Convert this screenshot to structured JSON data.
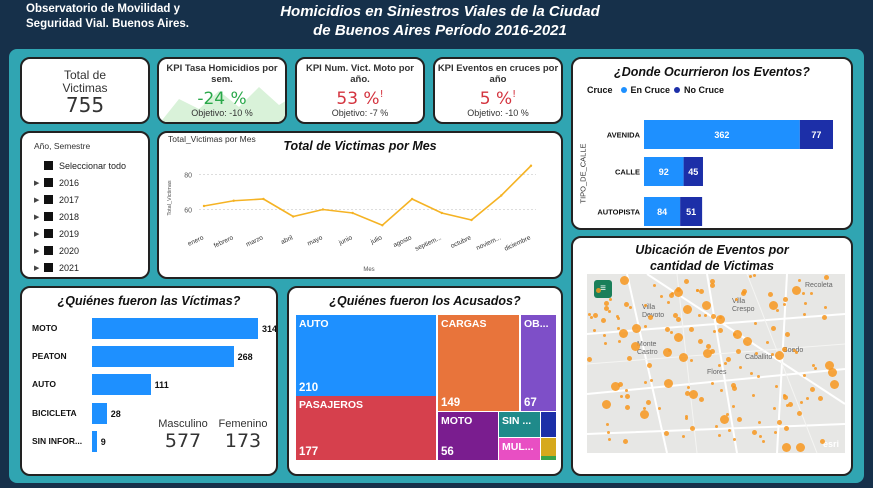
{
  "header": {
    "org": "Observatorio de Movilidad y Seguridad Vial. Buenos Aires.",
    "title_line1": "Homicidios en Siniestros Viales de la Ciudad",
    "title_line2": "de Buenos Aires Período 2016-2021"
  },
  "kpi_total": {
    "label": "Total de Victimas",
    "value": "755"
  },
  "kpi_homicidios": {
    "label": "KPI Tasa Homicidios por sem.",
    "value": "-24 %",
    "objective": "Objetivo: -10 %"
  },
  "kpi_moto": {
    "label": "KPI Num. Vict. Moto por año.",
    "value": "53 %",
    "objective": "Objetivo: -7 %"
  },
  "kpi_cruces": {
    "label": "KPI Eventos en cruces por año",
    "value": "5 %",
    "objective": "Objetivo: -10 %"
  },
  "slicer": {
    "header": "Año, Semestre",
    "select_all": "Seleccionar todo",
    "years": [
      "2016",
      "2017",
      "2018",
      "2019",
      "2020",
      "2021"
    ]
  },
  "line_chart": {
    "title": "Total de Victimas por Mes",
    "visual_title": "Total_Victimas por Mes",
    "ylabel": "Total_Victimas",
    "xlabel": "Mes",
    "chart_data": {
      "type": "line",
      "categories": [
        "enero",
        "febrero",
        "marzo",
        "abril",
        "mayo",
        "junio",
        "julio",
        "agosto",
        "septiem...",
        "octubre",
        "noviem...",
        "diciembre"
      ],
      "values": [
        62,
        65,
        66,
        56,
        60,
        58,
        51,
        66,
        58,
        54,
        68,
        85
      ],
      "ylim": [
        50,
        90
      ],
      "yticks": [
        "60",
        "80"
      ],
      "color": "#f5b324"
    }
  },
  "events_chart": {
    "title": "¿Donde Ocurrieron los Eventos?",
    "legend_title": "Cruce",
    "legend": [
      "En Cruce",
      "No Cruce"
    ],
    "axis_label": "TIPO_DE_CALLE",
    "colors": [
      "#1e90ff",
      "#1c2fa8"
    ],
    "chart_data": {
      "type": "bar",
      "categories": [
        "AVENIDA",
        "CALLE",
        "AUTOPISTA"
      ],
      "series": [
        {
          "name": "En Cruce",
          "values": [
            362,
            92,
            84
          ]
        },
        {
          "name": "No Cruce",
          "values": [
            77,
            45,
            51
          ]
        }
      ]
    }
  },
  "victims_chart": {
    "title": "¿Quiénes fueron las Víctimas?",
    "chart_data": {
      "type": "bar",
      "categories": [
        "MOTO",
        "PEATON",
        "AUTO",
        "BICICLETA",
        "SIN INFOR..."
      ],
      "values": [
        314,
        268,
        111,
        28,
        9
      ]
    },
    "gender": [
      {
        "label": "Masculino",
        "value": "577"
      },
      {
        "label": "Femenino",
        "value": "173"
      }
    ]
  },
  "accused_chart": {
    "title": "¿Quiénes fueron los Acusados?",
    "chart_data": {
      "type": "treemap",
      "items": [
        {
          "label": "AUTO",
          "value": "210",
          "color": "#1e90ff"
        },
        {
          "label": "CARGAS",
          "value": "149",
          "color": "#e8743b"
        },
        {
          "label": "OB...",
          "value": "67",
          "color": "#7e4fc8"
        },
        {
          "label": "PASAJEROS",
          "value": "177",
          "color": "#d6404d"
        },
        {
          "label": "MOTO",
          "value": "56",
          "color": "#7a1d8f"
        },
        {
          "label": "SIN ...",
          "value": "",
          "color": "#1f8a8a"
        },
        {
          "label": "MUL...",
          "value": "",
          "color": "#e84fc3"
        }
      ]
    }
  },
  "map_card": {
    "title": "Ubicación de Eventos por cantidad de Victimas",
    "places": [
      "Recoleta",
      "Villa Crespo",
      "Villa Devoto",
      "Monte Castro",
      "Caballito",
      "Flores",
      "Boedo"
    ],
    "attribution": "esri"
  }
}
